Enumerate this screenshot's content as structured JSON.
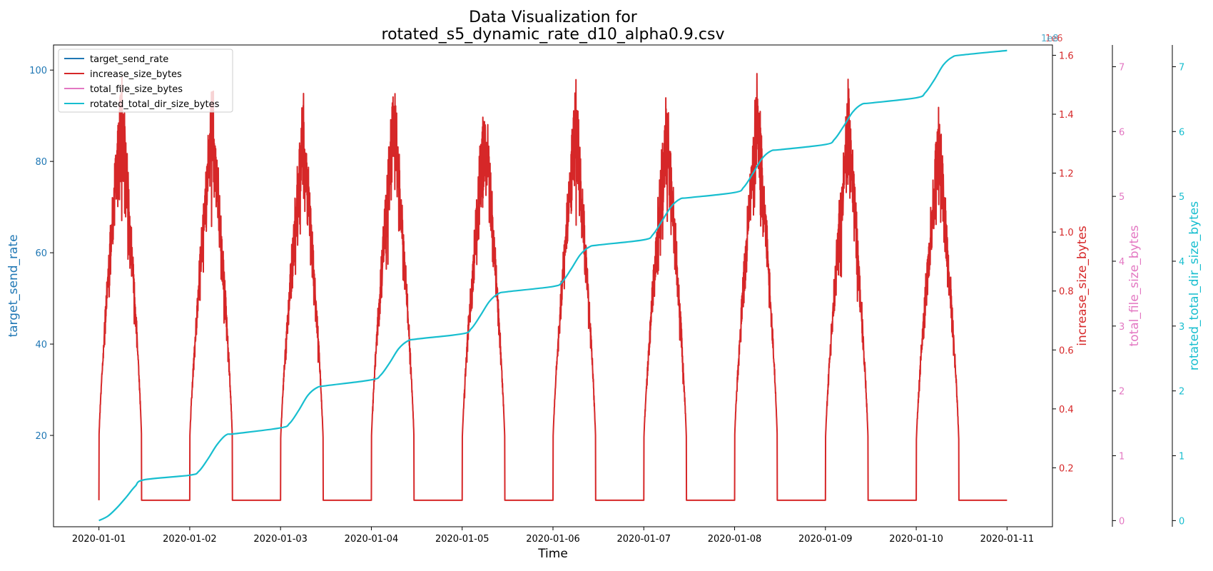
{
  "chart_data": {
    "type": "line",
    "title_lines": [
      "Data Visualization for",
      "rotated_s5_dynamic_rate_d10_alpha0.9.csv"
    ],
    "xlabel": "Time",
    "x_ticks": [
      "2020-01-01",
      "2020-01-02",
      "2020-01-03",
      "2020-01-04",
      "2020-01-05",
      "2020-01-06",
      "2020-01-07",
      "2020-01-08",
      "2020-01-09",
      "2020-01-10",
      "2020-01-11"
    ],
    "x_range_days": [
      -0.5,
      10.5
    ],
    "axes": [
      {
        "id": "target_send_rate",
        "label": "target_send_rate",
        "color": "#1f77b4",
        "side": "left",
        "ylim": [
          0,
          105.5
        ],
        "ticks": [
          20,
          40,
          60,
          80,
          100
        ],
        "tick_labels": [
          "20",
          "40",
          "60",
          "80",
          "100"
        ],
        "offset_text": ""
      },
      {
        "id": "increase_size_bytes",
        "label": "increase_size_bytes",
        "color": "#d62728",
        "side": "right",
        "ylim": [
          0.0,
          1.635
        ],
        "ticks": [
          0.2,
          0.4,
          0.6,
          0.8,
          1.0,
          1.2,
          1.4,
          1.6
        ],
        "tick_labels": [
          "0.2",
          "0.4",
          "0.6",
          "0.8",
          "1.0",
          "1.2",
          "1.4",
          "1.6"
        ],
        "offset_text": "1e6"
      },
      {
        "id": "total_file_size_bytes",
        "label": "total_file_size_bytes",
        "color": "#e377c2",
        "side": "right",
        "ylim": [
          -0.095,
          7.335
        ],
        "ticks": [
          0,
          1,
          2,
          3,
          4,
          5,
          6,
          7
        ],
        "tick_labels": [
          "0",
          "1",
          "2",
          "3",
          "4",
          "5",
          "6",
          "7"
        ],
        "offset_text": "1e8"
      },
      {
        "id": "rotated_total_dir_size_bytes",
        "label": "rotated_total_dir_size_bytes",
        "color": "#17becf",
        "side": "right",
        "ylim": [
          -0.095,
          7.335
        ],
        "ticks": [
          0,
          1,
          2,
          3,
          4,
          5,
          6,
          7
        ],
        "tick_labels": [
          "0",
          "1",
          "2",
          "3",
          "4",
          "5",
          "6",
          "7"
        ],
        "offset_text": "1e8"
      }
    ],
    "legend": {
      "placement": "top-left",
      "entries": [
        {
          "name": "target_send_rate",
          "color": "#1f77b4"
        },
        {
          "name": "increase_size_bytes",
          "color": "#d62728"
        },
        {
          "name": "total_file_size_bytes",
          "color": "#e377c2"
        },
        {
          "name": "rotated_total_dir_size_bytes",
          "color": "#17becf"
        }
      ]
    },
    "series": [
      {
        "name": "increase_size_bytes",
        "axis": "increase_size_bytes",
        "color": "#d62728",
        "description_pattern": "daily bursts: rises from 0 at start of each day to peak near midday-ish then returns to baseline; baseline ~0.09e6",
        "baseline": 0.09,
        "bursts": [
          {
            "start": 0.0,
            "peak_day": 0.25,
            "end": 0.47,
            "peak": 1.57
          },
          {
            "start": 1.0,
            "peak_day": 1.25,
            "end": 1.47,
            "peak": 1.54
          },
          {
            "start": 2.0,
            "peak_day": 2.25,
            "end": 2.47,
            "peak": 1.49
          },
          {
            "start": 3.0,
            "peak_day": 3.25,
            "end": 3.47,
            "peak": 1.54
          },
          {
            "start": 4.0,
            "peak_day": 4.25,
            "end": 4.47,
            "peak": 1.52
          },
          {
            "start": 5.0,
            "peak_day": 5.25,
            "end": 5.47,
            "peak": 1.54
          },
          {
            "start": 6.0,
            "peak_day": 6.25,
            "end": 6.47,
            "peak": 1.51
          },
          {
            "start": 7.0,
            "peak_day": 7.25,
            "end": 7.47,
            "peak": 1.57
          },
          {
            "start": 8.0,
            "peak_day": 8.25,
            "end": 8.47,
            "peak": 1.52
          },
          {
            "start": 9.0,
            "peak_day": 9.25,
            "end": 9.47,
            "peak": 1.46
          }
        ]
      },
      {
        "name": "rotated_total_dir_size_bytes",
        "axis": "rotated_total_dir_size_bytes",
        "color": "#17becf",
        "points": [
          [
            0.0,
            0.0
          ],
          [
            0.1,
            0.07
          ],
          [
            0.2,
            0.2
          ],
          [
            0.3,
            0.36
          ],
          [
            0.4,
            0.53
          ],
          [
            0.5,
            0.63
          ],
          [
            1.0,
            0.7
          ],
          [
            1.1,
            0.76
          ],
          [
            1.2,
            0.95
          ],
          [
            1.3,
            1.17
          ],
          [
            1.4,
            1.32
          ],
          [
            1.5,
            1.34
          ],
          [
            2.0,
            1.43
          ],
          [
            2.1,
            1.5
          ],
          [
            2.2,
            1.7
          ],
          [
            2.3,
            1.93
          ],
          [
            2.4,
            2.05
          ],
          [
            2.5,
            2.08
          ],
          [
            3.0,
            2.17
          ],
          [
            3.1,
            2.24
          ],
          [
            3.2,
            2.43
          ],
          [
            3.3,
            2.65
          ],
          [
            3.4,
            2.77
          ],
          [
            3.5,
            2.8
          ],
          [
            4.0,
            2.88
          ],
          [
            4.1,
            2.96
          ],
          [
            4.2,
            3.16
          ],
          [
            4.3,
            3.38
          ],
          [
            4.4,
            3.5
          ],
          [
            4.5,
            3.53
          ],
          [
            5.0,
            3.61
          ],
          [
            5.1,
            3.68
          ],
          [
            5.2,
            3.88
          ],
          [
            5.3,
            4.1
          ],
          [
            5.4,
            4.22
          ],
          [
            5.5,
            4.25
          ],
          [
            6.0,
            4.33
          ],
          [
            6.1,
            4.41
          ],
          [
            6.2,
            4.62
          ],
          [
            6.3,
            4.84
          ],
          [
            6.4,
            4.96
          ],
          [
            6.5,
            4.98
          ],
          [
            7.0,
            5.06
          ],
          [
            7.1,
            5.14
          ],
          [
            7.2,
            5.35
          ],
          [
            7.3,
            5.58
          ],
          [
            7.4,
            5.7
          ],
          [
            7.5,
            5.72
          ],
          [
            8.0,
            5.8
          ],
          [
            8.1,
            5.88
          ],
          [
            8.2,
            6.08
          ],
          [
            8.3,
            6.3
          ],
          [
            8.4,
            6.42
          ],
          [
            8.5,
            6.44
          ],
          [
            9.0,
            6.52
          ],
          [
            9.1,
            6.6
          ],
          [
            9.2,
            6.8
          ],
          [
            9.3,
            7.03
          ],
          [
            9.4,
            7.15
          ],
          [
            9.5,
            7.18
          ],
          [
            10.0,
            7.25
          ]
        ]
      },
      {
        "name": "target_send_rate",
        "axis": "target_send_rate",
        "color": "#1f77b4",
        "points": []
      },
      {
        "name": "total_file_size_bytes",
        "axis": "total_file_size_bytes",
        "color": "#e377c2",
        "points": []
      }
    ],
    "grid": false
  }
}
